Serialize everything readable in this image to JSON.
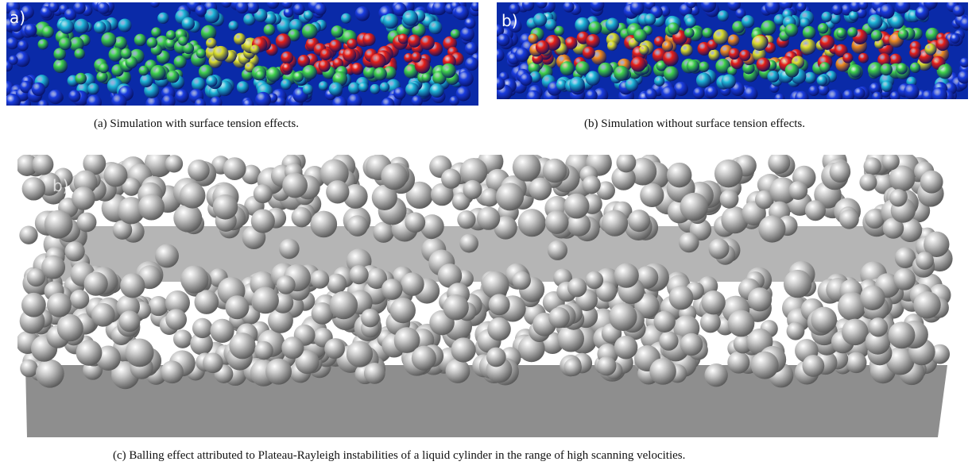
{
  "figure": {
    "panels": [
      {
        "label": "a)",
        "caption": "(a) Simulation with surface tension effects."
      },
      {
        "label": "b)",
        "caption": "(b) Simulation without surface tension effects."
      },
      {
        "label": "b)",
        "caption": "(c) Balling effect attributed to Plateau-Rayleigh instabilities of a liquid cylinder in the range of high scanning velocities."
      }
    ]
  }
}
